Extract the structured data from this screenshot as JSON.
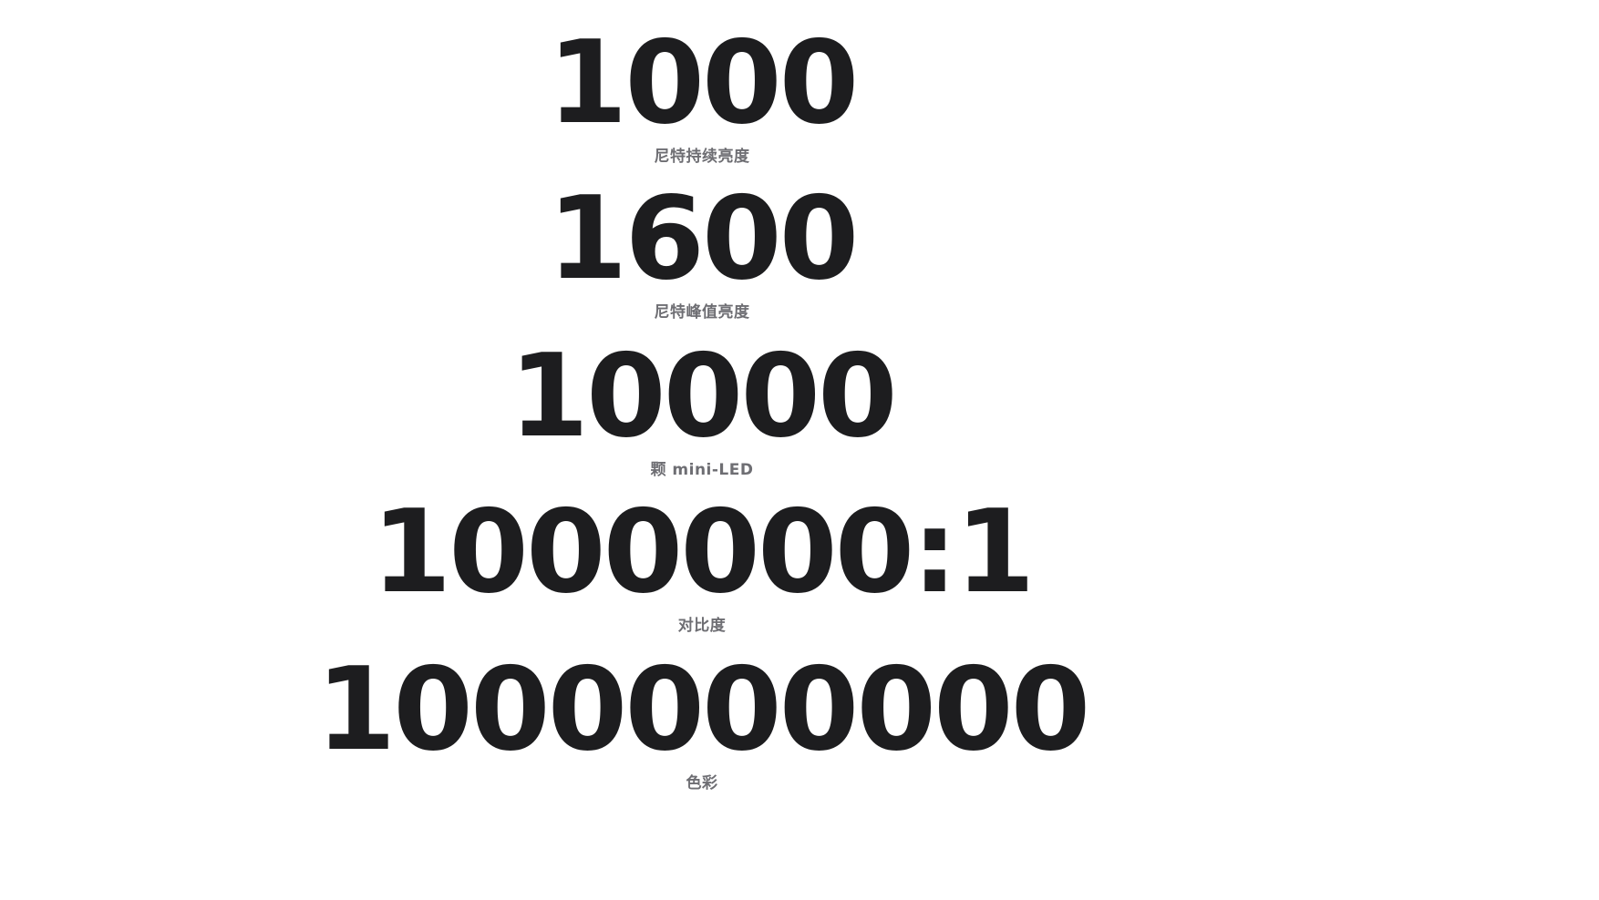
{
  "stats": [
    {
      "value": "1000",
      "caption": "尼特持续亮度"
    },
    {
      "value": "1600",
      "caption": "尼特峰值亮度"
    },
    {
      "value": "10000",
      "caption": "颗 mini-LED"
    },
    {
      "value": "1000000:1",
      "caption": "对比度"
    },
    {
      "value": "1000000000",
      "caption": "色彩"
    }
  ]
}
